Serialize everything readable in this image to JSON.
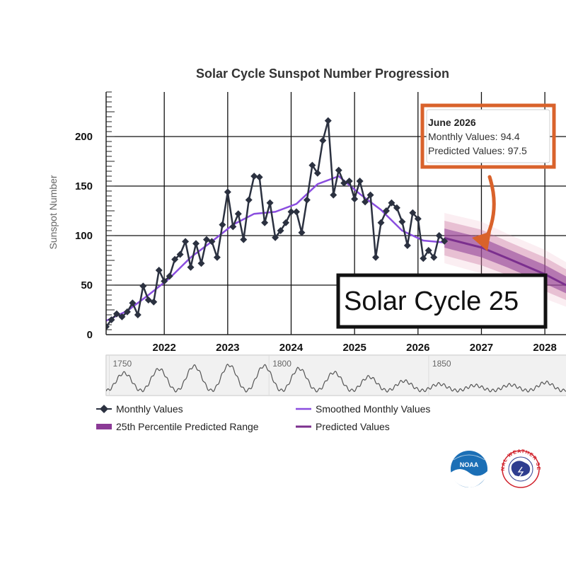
{
  "chart_data": {
    "type": "line",
    "title": "Solar Cycle Sunspot Number Progression",
    "ylabel": "Sunspot Number",
    "xlim": [
      "2021-02",
      "2028-05"
    ],
    "ylim": [
      0,
      245
    ],
    "y_ticks": [
      0,
      50,
      100,
      150,
      200
    ],
    "x_ticks": [
      "2022",
      "2023",
      "2024",
      "2025",
      "2026",
      "2027",
      "2028"
    ],
    "grid": true,
    "legend_position": "bottom",
    "series": [
      {
        "name": "Monthly Values",
        "color": "#2b3140",
        "marker": "diamond",
        "x": [
          "2021-02",
          "2021-03",
          "2021-04",
          "2021-05",
          "2021-06",
          "2021-07",
          "2021-08",
          "2021-09",
          "2021-10",
          "2021-11",
          "2021-12",
          "2022-01",
          "2022-02",
          "2022-03",
          "2022-04",
          "2022-05",
          "2022-06",
          "2022-07",
          "2022-08",
          "2022-09",
          "2022-10",
          "2022-11",
          "2022-12",
          "2023-01",
          "2023-02",
          "2023-03",
          "2023-04",
          "2023-05",
          "2023-06",
          "2023-07",
          "2023-08",
          "2023-09",
          "2023-10",
          "2023-11",
          "2023-12",
          "2024-01",
          "2024-02",
          "2024-03",
          "2024-04",
          "2024-05",
          "2024-06",
          "2024-07",
          "2024-08",
          "2024-09",
          "2024-10",
          "2024-11",
          "2024-12",
          "2025-01",
          "2025-02",
          "2025-03",
          "2025-04",
          "2025-05",
          "2025-06",
          "2025-07",
          "2025-08",
          "2025-09",
          "2025-10",
          "2025-11",
          "2025-12",
          "2026-01",
          "2026-02",
          "2026-03",
          "2026-04",
          "2026-05",
          "2026-06"
        ],
        "values": [
          8,
          15,
          21,
          18,
          23,
          32,
          20,
          49,
          35,
          33,
          65,
          54,
          59,
          76,
          81,
          94,
          68,
          92,
          72,
          96,
          94,
          78,
          111,
          144,
          109,
          122,
          96,
          136,
          160,
          159,
          113,
          133,
          98,
          105,
          113,
          124,
          124,
          103,
          136,
          171,
          163,
          196,
          216,
          141,
          166,
          153,
          155,
          137,
          155,
          134,
          141,
          78,
          113,
          125,
          133,
          128,
          114,
          90,
          123,
          117,
          77,
          85,
          78,
          100,
          94.4
        ]
      },
      {
        "name": "Smoothed Monthly Values",
        "color": "#8a4ddf",
        "x": [
          "2021-02",
          "2021-06",
          "2021-10",
          "2022-02",
          "2022-06",
          "2022-10",
          "2023-02",
          "2023-06",
          "2023-10",
          "2024-02",
          "2024-06",
          "2024-10",
          "2025-02",
          "2025-06",
          "2025-10",
          "2026-02",
          "2026-06"
        ],
        "values": [
          14,
          24,
          40,
          57,
          78,
          94,
          111,
          122,
          124,
          132,
          152,
          160,
          142,
          126,
          105,
          95,
          93
        ]
      },
      {
        "name": "Predicted Values",
        "color": "#7b2f8e",
        "x": [
          "2026-06",
          "2027-01",
          "2027-06",
          "2028-01",
          "2028-05"
        ],
        "values": [
          97.5,
          88,
          77,
          61,
          50
        ]
      },
      {
        "name": "25th Percentile Predicted Range",
        "color": "#8b3a96",
        "x": [
          "2026-06",
          "2027-01",
          "2027-06",
          "2028-01",
          "2028-05"
        ],
        "low": [
          80,
          70,
          60,
          44,
          35
        ],
        "high": [
          115,
          106,
          94,
          78,
          66
        ]
      }
    ],
    "navigator": {
      "ticks": [
        "1750",
        "1800",
        "1850"
      ],
      "x_range": [
        1749,
        1893
      ]
    }
  },
  "tooltip": {
    "date": "June 2026",
    "monthly_label": "Monthly Values: ",
    "monthly_value": "94.4",
    "predicted_label": "Predicted Values: ",
    "predicted_value": "97.5"
  },
  "annotation": {
    "text": "Solar Cycle 25",
    "arrow_color": "#d9622b",
    "box_border_color": "#d9622b"
  },
  "legend": [
    {
      "label": "Monthly Values",
      "symbol": "line-diamond",
      "color": "#2b3140"
    },
    {
      "label": "Smoothed Monthly Values",
      "symbol": "line",
      "color": "#8a4ddf"
    },
    {
      "label": "25th Percentile Predicted Range",
      "symbol": "band",
      "color": "#8b3a96"
    },
    {
      "label": "Predicted Values",
      "symbol": "line",
      "color": "#7b2f8e"
    }
  ],
  "logos": {
    "noaa_text": "NOAA",
    "nws_text": "NATIONAL WEATHER SERVICE",
    "noaa_icon": "noaa-logo",
    "nws_icon": "nws-logo"
  }
}
